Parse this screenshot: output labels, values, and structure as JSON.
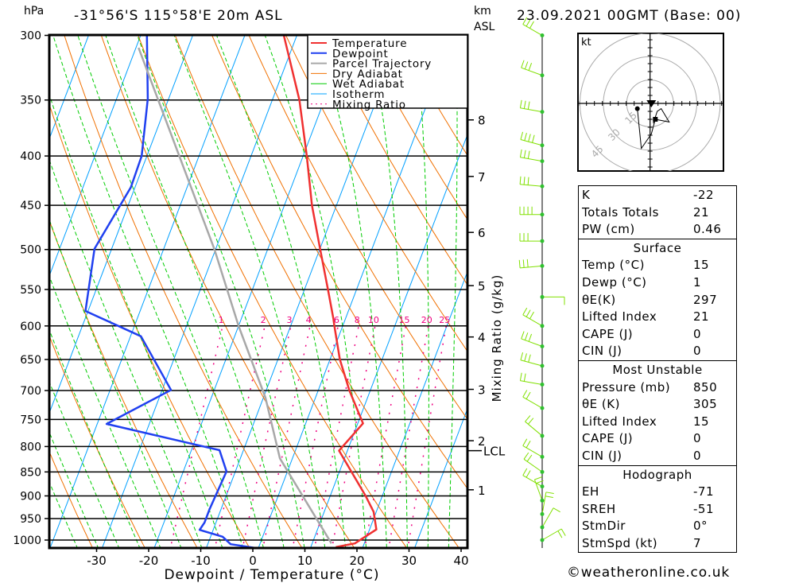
{
  "header": {
    "unit_left": "hPa",
    "location": "-31°56'S 115°58'E 20m ASL",
    "km_label": "km",
    "asl_label": "ASL",
    "datetime": "23.09.2021 00GMT (Base: 00)"
  },
  "colors": {
    "temperature": "#f03030",
    "dewpoint": "#2040f0",
    "parcel": "#a8a8a8",
    "dry_adiabat": "#f07000",
    "wet_adiabat": "#00cc00",
    "isotherm": "#00a0ff",
    "mixing_ratio": "#f00080",
    "wind_barb": "#80e000"
  },
  "chart_data": {
    "type": "skew-t",
    "xlabel": "Dewpoint / Temperature (°C)",
    "ylabel_right": "Mixing Ratio (g/kg)",
    "xlim": [
      -40,
      40
    ],
    "ylim_hpa": [
      1020,
      300
    ],
    "x_ticks": [
      "-30",
      "-20",
      "-10",
      "0",
      "10",
      "20",
      "30",
      "40"
    ],
    "x_tick_values": [
      -30,
      -20,
      -10,
      0,
      10,
      20,
      30,
      40
    ],
    "pressure_ticks": [
      "300",
      "350",
      "400",
      "450",
      "500",
      "550",
      "600",
      "650",
      "700",
      "750",
      "800",
      "850",
      "900",
      "950",
      "1000"
    ],
    "pressure_values": [
      300,
      350,
      400,
      450,
      500,
      550,
      600,
      650,
      700,
      750,
      800,
      850,
      900,
      950,
      1000
    ],
    "km_ticks": [
      {
        "label": "8",
        "p": 367
      },
      {
        "label": "7",
        "p": 420
      },
      {
        "label": "6",
        "p": 480
      },
      {
        "label": "5",
        "p": 545
      },
      {
        "label": "4",
        "p": 616
      },
      {
        "label": "3",
        "p": 698
      },
      {
        "label": "2",
        "p": 789
      },
      {
        "label": "1",
        "p": 887
      }
    ],
    "lcl": {
      "label": "LCL",
      "p": 808
    },
    "mixing_ratio_labels": [
      "1",
      "2",
      "3",
      "4",
      "6",
      "8",
      "10",
      "15",
      "20",
      "25"
    ],
    "mixing_ratio_values": [
      1,
      2,
      3,
      4,
      6,
      8,
      10,
      15,
      20,
      25
    ],
    "legend": [
      "Temperature",
      "Dewpoint",
      "Parcel Trajectory",
      "Dry Adiabat",
      "Wet Adiabat",
      "Isotherm",
      "Mixing Ratio"
    ],
    "series": [
      {
        "name": "Temperature",
        "points": [
          [
            1017,
            14.8
          ],
          [
            1008,
            18.2
          ],
          [
            975,
            21.3
          ],
          [
            935,
            19.5
          ],
          [
            900,
            16.8
          ],
          [
            808,
            8.4
          ],
          [
            757,
            11.0
          ],
          [
            700,
            6.0
          ],
          [
            650,
            1.9
          ],
          [
            600,
            -1.6
          ],
          [
            590,
            -2.3
          ],
          [
            550,
            -5.5
          ],
          [
            500,
            -9.9
          ],
          [
            450,
            -14.7
          ],
          [
            400,
            -19.3
          ],
          [
            350,
            -24.8
          ],
          [
            300,
            -32.5
          ]
        ]
      },
      {
        "name": "Dewpoint",
        "points": [
          [
            1021,
            0.5
          ],
          [
            1010,
            -5.6
          ],
          [
            992,
            -7.7
          ],
          [
            976,
            -12.6
          ],
          [
            959,
            -12.2
          ],
          [
            929,
            -12.2
          ],
          [
            849,
            -11.7
          ],
          [
            807,
            -14.6
          ],
          [
            758,
            -38.2
          ],
          [
            699,
            -28.3
          ],
          [
            615,
            -38.0
          ],
          [
            579,
            -50.5
          ],
          [
            499,
            -53.3
          ],
          [
            431,
            -50.8
          ],
          [
            400,
            -51.0
          ],
          [
            349,
            -54.0
          ],
          [
            300,
            -58.8
          ]
        ]
      },
      {
        "name": "Parcel Trajectory",
        "points": [
          [
            1008,
            13.7
          ],
          [
            823,
            -2.4
          ],
          [
            712,
            -9.6
          ],
          [
            600,
            -20.0
          ],
          [
            500,
            -30.2
          ],
          [
            309,
            -59.5
          ]
        ]
      }
    ],
    "wind_barbs": [
      [
        300,
        300,
        25
      ],
      [
        330,
        290,
        30
      ],
      [
        360,
        280,
        30
      ],
      [
        390,
        285,
        35
      ],
      [
        405,
        280,
        30
      ],
      [
        430,
        275,
        30
      ],
      [
        460,
        270,
        35
      ],
      [
        490,
        270,
        30
      ],
      [
        520,
        265,
        25
      ],
      [
        560,
        90,
        10
      ],
      [
        600,
        300,
        30
      ],
      [
        630,
        290,
        25
      ],
      [
        660,
        285,
        25
      ],
      [
        690,
        280,
        20
      ],
      [
        730,
        300,
        15
      ],
      [
        780,
        310,
        20
      ],
      [
        820,
        300,
        15
      ],
      [
        850,
        305,
        20
      ],
      [
        880,
        300,
        15
      ],
      [
        910,
        340,
        15
      ],
      [
        940,
        10,
        15
      ],
      [
        970,
        30,
        10
      ],
      [
        1000,
        60,
        15
      ]
    ]
  },
  "hodograph": {
    "unit": "kt",
    "ring_labels": [
      "15",
      "30",
      "45"
    ],
    "ring_values": [
      15,
      30,
      45
    ],
    "path_kt": [
      [
        -8,
        -3.3
      ],
      [
        -5.5,
        -28.3
      ],
      [
        0.8,
        -19.2
      ],
      [
        3.3,
        -10
      ],
      [
        12,
        -11.7
      ],
      [
        7,
        -3.3
      ],
      [
        4.5,
        -5
      ],
      [
        2,
        -12.5
      ]
    ],
    "storm_kt": [
      0.8,
      -5
    ]
  },
  "indices": {
    "k": {
      "label": "K",
      "value": "-22"
    },
    "tt": {
      "label": "Totals Totals",
      "value": "21"
    },
    "pw": {
      "label": "PW (cm)",
      "value": "0.46"
    },
    "surface": {
      "title": "Surface",
      "rows": [
        {
          "label": "Temp (°C)",
          "value": "15"
        },
        {
          "label": "Dewp (°C)",
          "value": "1"
        },
        {
          "label": "θE(K)",
          "value": "297"
        },
        {
          "label": "Lifted Index",
          "value": "21"
        },
        {
          "label": "CAPE (J)",
          "value": "0"
        },
        {
          "label": "CIN (J)",
          "value": "0"
        }
      ]
    },
    "most_unstable": {
      "title": "Most Unstable",
      "rows": [
        {
          "label": "Pressure (mb)",
          "value": "850"
        },
        {
          "label": "θE (K)",
          "value": "305"
        },
        {
          "label": "Lifted Index",
          "value": "15"
        },
        {
          "label": "CAPE (J)",
          "value": "0"
        },
        {
          "label": "CIN (J)",
          "value": "0"
        }
      ]
    },
    "hodograph": {
      "title": "Hodograph",
      "rows": [
        {
          "label": "EH",
          "value": "-71"
        },
        {
          "label": "SREH",
          "value": "-51"
        },
        {
          "label": "StmDir",
          "value": "0°"
        },
        {
          "label": "StmSpd (kt)",
          "value": "7"
        }
      ]
    }
  },
  "footer": {
    "copyright": "©weatheronline.co.uk"
  }
}
